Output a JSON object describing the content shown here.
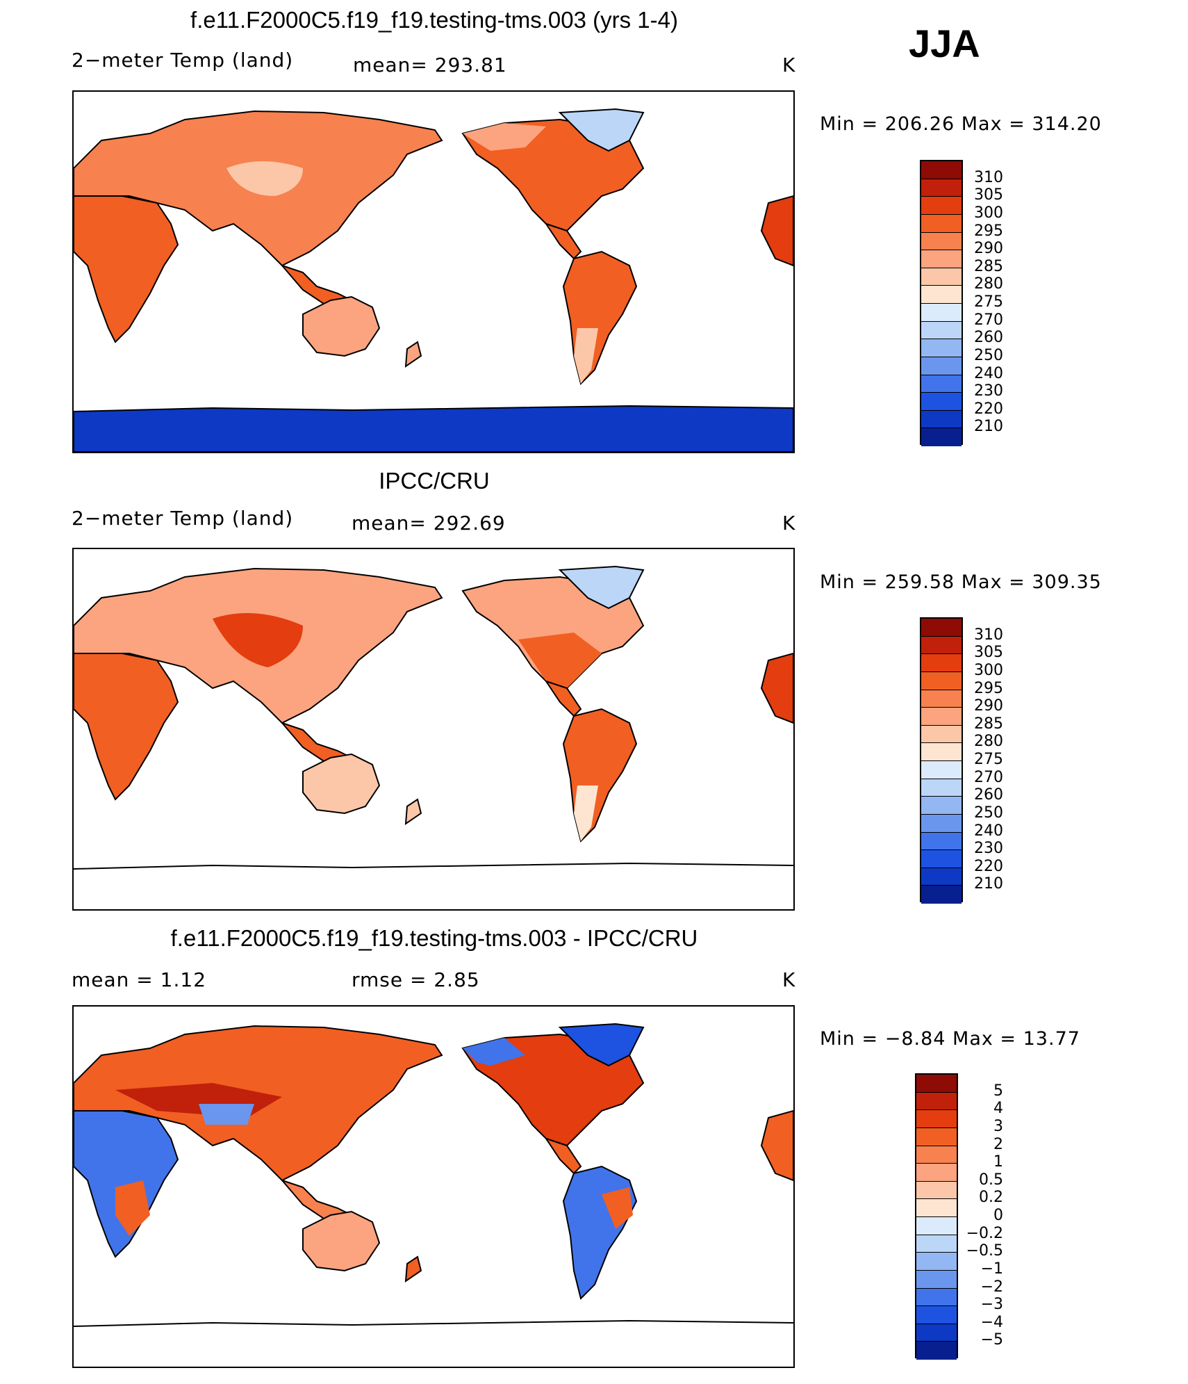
{
  "season": "JJA",
  "colors": {
    "warm": [
      "#fde5d2",
      "#fcc7a8",
      "#fba47f",
      "#f7814f",
      "#f15f23",
      "#e33d10",
      "#c1200a",
      "#8e0b06"
    ],
    "cool": [
      "#dcebfb",
      "#bcd6f8",
      "#93b7f2",
      "#6a96ee",
      "#4174ea",
      "#1d53e0",
      "#0d39c4",
      "#071f8f"
    ],
    "antarctic": [
      "#0a39c8",
      "#0d4fe0"
    ],
    "greenland": [
      "#bcd6f8",
      "#93b7f2"
    ]
  },
  "panels": [
    {
      "title": "f.e11.F2000C5.f19_f19.testing-tms.003 (yrs 1-4)",
      "left_label": "2−meter Temp (land)",
      "center_label": "mean= 293.81",
      "units": "K",
      "minmax": "Min = 206.26 Max = 314.20",
      "map_icon": "world-temperature-map",
      "colorbar": {
        "labels": [
          "310",
          "305",
          "300",
          "295",
          "290",
          "285",
          "280",
          "275",
          "270",
          "260",
          "250",
          "240",
          "230",
          "220",
          "210"
        ]
      }
    },
    {
      "title": "IPCC/CRU",
      "left_label": "2−meter Temp (land)",
      "center_label": "mean= 292.69",
      "units": "K",
      "minmax": "Min = 259.58 Max = 309.35",
      "map_icon": "world-temperature-map",
      "colorbar": {
        "labels": [
          "310",
          "305",
          "300",
          "295",
          "290",
          "285",
          "280",
          "275",
          "270",
          "260",
          "250",
          "240",
          "230",
          "220",
          "210"
        ]
      }
    },
    {
      "title": "f.e11.F2000C5.f19_f19.testing-tms.003 - IPCC/CRU",
      "left_label": "mean = 1.12",
      "center_label": "rmse = 2.85",
      "units": "K",
      "minmax": "Min = −8.84 Max = 13.77",
      "map_icon": "world-difference-map",
      "colorbar": {
        "labels": [
          "5",
          "4",
          "3",
          "2",
          "1",
          "0.5",
          "0.2",
          "0",
          "−0.2",
          "−0.5",
          "−1",
          "−2",
          "−3",
          "−4",
          "−5"
        ]
      }
    }
  ]
}
